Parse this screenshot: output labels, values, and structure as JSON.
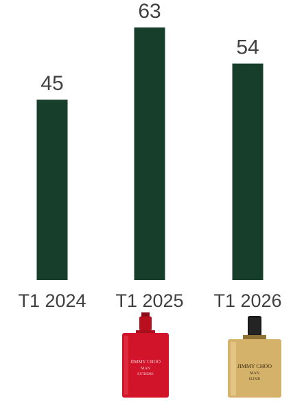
{
  "chart_data": {
    "type": "bar",
    "categories": [
      "T1 2024",
      "T1 2025",
      "T1 2026"
    ],
    "values": [
      45,
      63,
      54
    ],
    "title": "",
    "xlabel": "",
    "ylabel": "",
    "ylim": [
      0,
      63
    ],
    "grid": false,
    "legend": "none",
    "bar_color": "#173D2B"
  },
  "products": [
    {
      "name": "red-bottle",
      "colors": {
        "body": "#D2142B",
        "cap": "#B8101F",
        "label": "#F3C8CC"
      },
      "label_lines": [
        "JIMMY CHOO",
        "MAN",
        "EXTREME"
      ]
    },
    {
      "name": "gold-bottle",
      "colors": {
        "body": "#D4B26A",
        "cap": "#1A1A1A",
        "label": "#3A2A10"
      },
      "label_lines": [
        "JIMMY CHOO",
        "MAN",
        "ELIXIR"
      ]
    }
  ]
}
